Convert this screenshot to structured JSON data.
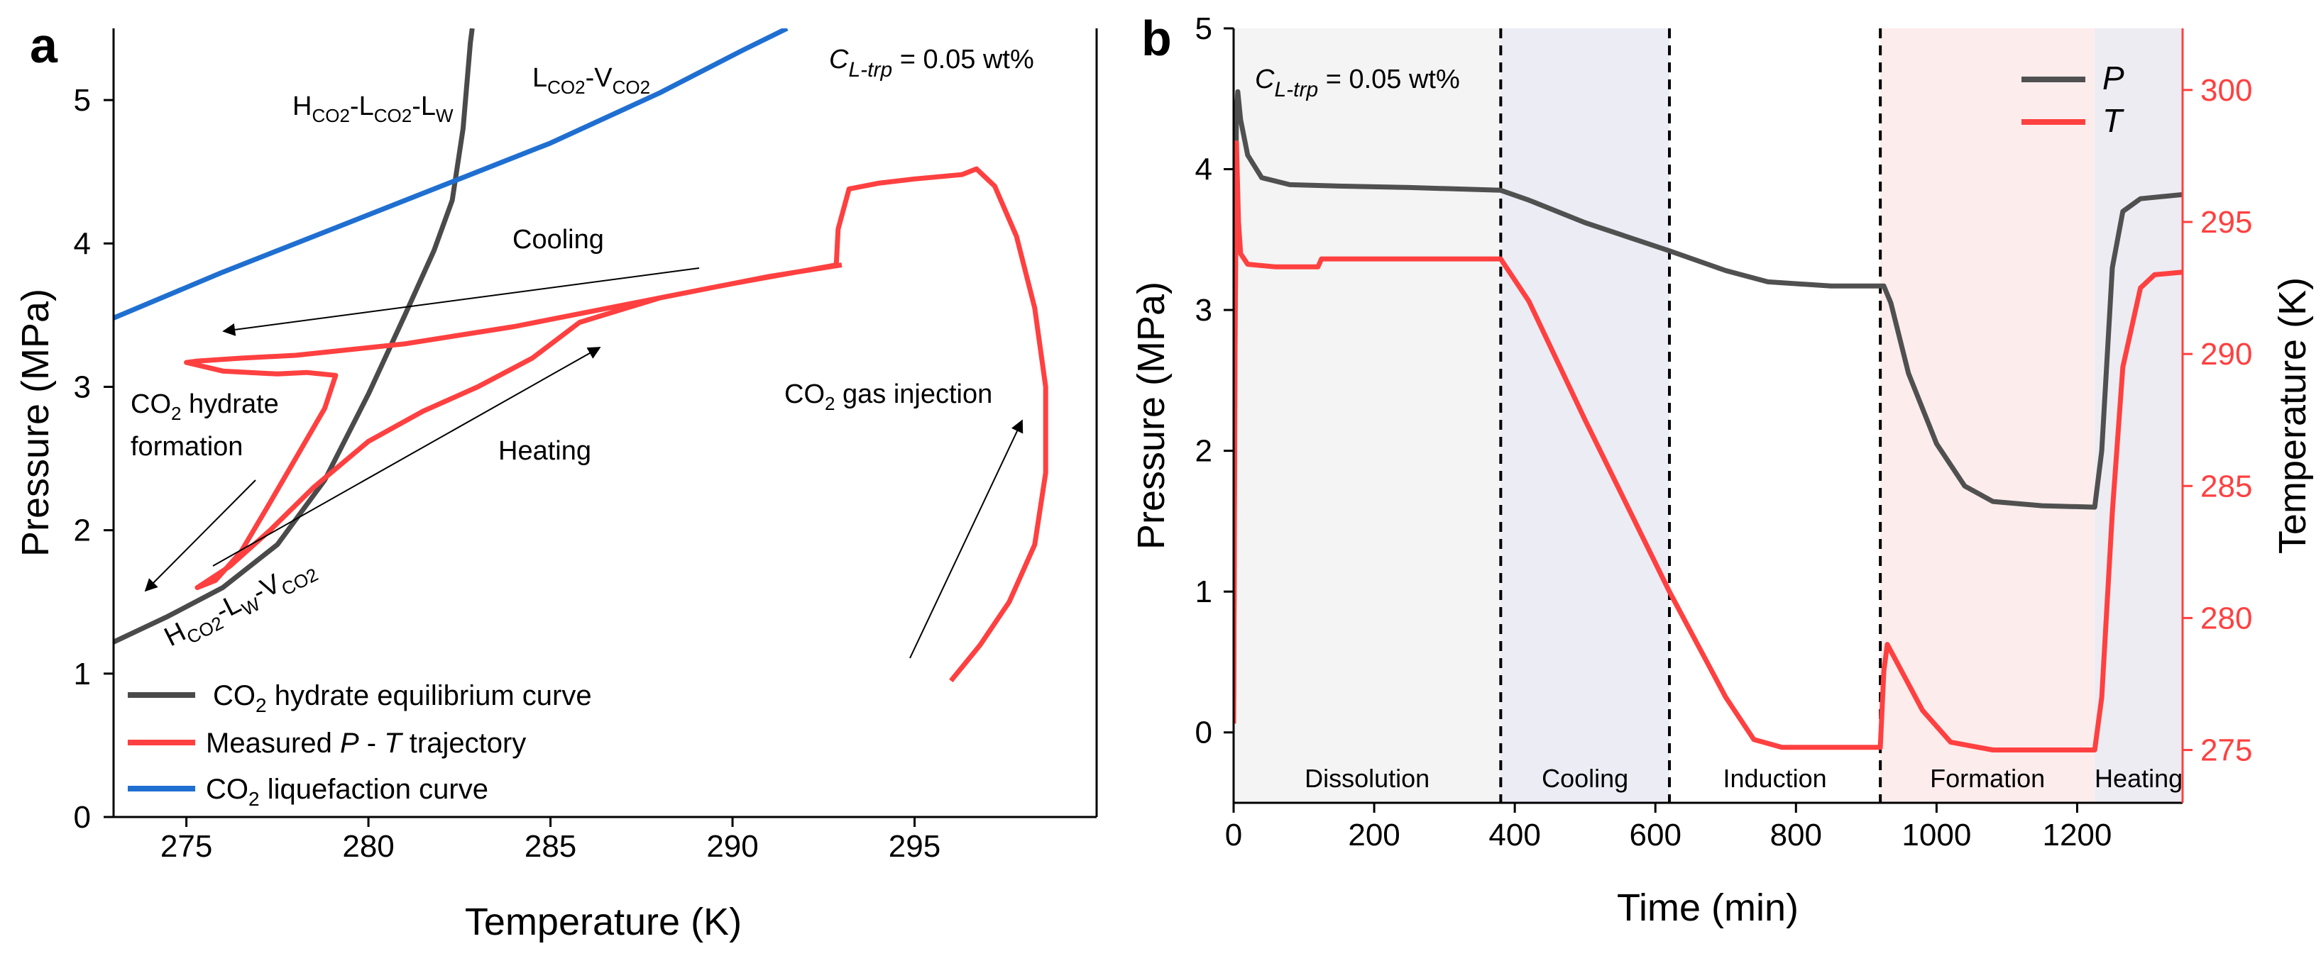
{
  "figure": {
    "panel_a": {
      "letter": "a",
      "conc_label": {
        "c": "C",
        "sub": "L-trp",
        "rest": " = 0.05 wt%"
      },
      "annotations": {
        "hlw_curve": {
          "parts": [
            "H",
            "CO2",
            "-L",
            "CO2",
            "-L",
            "W"
          ]
        },
        "lv_curve": {
          "parts": [
            "L",
            "CO2",
            "-V",
            "CO2"
          ]
        },
        "hlv_curve": {
          "parts": [
            "H",
            "CO2",
            "-L",
            "W",
            "-V",
            "CO2"
          ]
        },
        "cooling": "Cooling",
        "heating": "Heating",
        "formation_line1": {
          "pre": "CO",
          "sub": "2",
          "post": " hydrate"
        },
        "formation_line2": "formation",
        "injection": {
          "pre": "CO",
          "sub": "2",
          "post": " gas injection"
        }
      },
      "legend": [
        {
          "pre": "CO",
          "sub": "2",
          "post": " hydrate equilibrium curve",
          "color": "#4a4a4a"
        },
        {
          "text": "Measured ",
          "italic1": "P",
          "mid": " - ",
          "italic2": "T",
          "post": " trajectory",
          "color": "#ff4040"
        },
        {
          "pre": "CO",
          "sub": "2",
          "post": " liquefaction curve",
          "color": "#1f6fd1"
        }
      ]
    },
    "panel_b": {
      "letter": "b",
      "conc_label": {
        "c": "C",
        "sub": "L-trp",
        "rest": " = 0.05 wt%"
      },
      "legend": [
        {
          "label": "P",
          "color": "#505050"
        },
        {
          "label": "T",
          "color": "#ff4040"
        }
      ],
      "phases": [
        {
          "label": "Dissolution",
          "start": 0,
          "end": 380,
          "fill": "#f4f4f4"
        },
        {
          "label": "Cooling",
          "start": 380,
          "end": 620,
          "fill": "#ececf5"
        },
        {
          "label": "Induction",
          "start": 620,
          "end": 920,
          "fill": "#ffffff"
        },
        {
          "label": "Formation",
          "start": 920,
          "end": 1225,
          "fill": "#fdecec"
        },
        {
          "label": "Heating",
          "start": 1225,
          "end": 1350,
          "fill": "#ececf2"
        }
      ],
      "dividers": [
        380,
        620,
        920
      ]
    }
  },
  "chart_data": [
    {
      "type": "line",
      "title": "",
      "xlabel": "Temperature (K)",
      "ylabel": "Pressure (MPa)",
      "xlim": [
        273,
        300
      ],
      "ylim": [
        0,
        5.5
      ],
      "xticks": [
        275,
        280,
        285,
        290,
        295
      ],
      "yticks": [
        0,
        1,
        2,
        3,
        4,
        5
      ],
      "series": [
        {
          "name": "CO2 hydrate equilibrium curve",
          "color": "#4a4a4a",
          "points": [
            [
              273.0,
              1.22
            ],
            [
              274.5,
              1.4
            ],
            [
              276.0,
              1.6
            ],
            [
              277.5,
              1.9
            ],
            [
              278.8,
              2.35
            ],
            [
              280.0,
              2.95
            ],
            [
              281.0,
              3.5
            ],
            [
              281.8,
              3.95
            ],
            [
              282.3,
              4.3
            ],
            [
              282.6,
              4.8
            ],
            [
              282.8,
              5.4
            ],
            [
              282.85,
              5.5
            ]
          ]
        },
        {
          "name": "Measured P - T trajectory",
          "color": "#ff4040",
          "points": [
            [
              296.0,
              0.95
            ],
            [
              296.8,
              1.2
            ],
            [
              297.6,
              1.5
            ],
            [
              298.3,
              1.9
            ],
            [
              298.6,
              2.4
            ],
            [
              298.6,
              3.0
            ],
            [
              298.3,
              3.55
            ],
            [
              297.8,
              4.05
            ],
            [
              297.2,
              4.4
            ],
            [
              296.7,
              4.52
            ],
            [
              296.3,
              4.48
            ],
            [
              295.0,
              4.45
            ],
            [
              294.0,
              4.42
            ],
            [
              293.2,
              4.38
            ],
            [
              292.9,
              4.1
            ],
            [
              292.85,
              3.85
            ],
            [
              290.0,
              3.72
            ],
            [
              287.0,
              3.57
            ],
            [
              284.0,
              3.42
            ],
            [
              281.0,
              3.3
            ],
            [
              278.0,
              3.22
            ],
            [
              276.5,
              3.2
            ],
            [
              275.3,
              3.18
            ],
            [
              275.0,
              3.17
            ],
            [
              276.0,
              3.11
            ],
            [
              277.5,
              3.09
            ],
            [
              278.3,
              3.1
            ],
            [
              279.1,
              3.08
            ],
            [
              278.8,
              2.85
            ],
            [
              278.0,
              2.5
            ],
            [
              277.2,
              2.15
            ],
            [
              276.5,
              1.85
            ],
            [
              275.8,
              1.65
            ],
            [
              275.3,
              1.6
            ],
            [
              276.2,
              1.75
            ],
            [
              277.3,
              2.0
            ],
            [
              278.5,
              2.3
            ],
            [
              280.0,
              2.62
            ],
            [
              281.5,
              2.83
            ],
            [
              283.0,
              3.0
            ],
            [
              284.5,
              3.2
            ],
            [
              285.8,
              3.45
            ],
            [
              288.0,
              3.62
            ],
            [
              291.0,
              3.77
            ],
            [
              293.0,
              3.85
            ]
          ]
        },
        {
          "name": "CO2 liquefaction curve",
          "color": "#1f6fd1",
          "points": [
            [
              273.0,
              3.48
            ],
            [
              276.0,
              3.8
            ],
            [
              279.0,
              4.1
            ],
            [
              282.0,
              4.4
            ],
            [
              285.0,
              4.7
            ],
            [
              288.0,
              5.05
            ],
            [
              290.3,
              5.35
            ],
            [
              291.5,
              5.5
            ]
          ]
        }
      ]
    },
    {
      "type": "line",
      "title": "",
      "xlabel": "Time (min)",
      "ylabel": "Pressure (MPa)",
      "y2label": "Temperature (K)",
      "xlim": [
        0,
        1350
      ],
      "ylim": [
        -0.5,
        5
      ],
      "y2lim": [
        273,
        302.333
      ],
      "xticks": [
        0,
        200,
        400,
        600,
        800,
        1000,
        1200
      ],
      "yticks": [
        0,
        1,
        2,
        3,
        4,
        5
      ],
      "y2ticks": [
        275,
        280,
        285,
        290,
        295,
        300
      ],
      "series": [
        {
          "name": "P",
          "axis": "left",
          "color": "#505050",
          "points": [
            [
              0,
              0.1
            ],
            [
              2,
              3.0
            ],
            [
              4,
              4.4
            ],
            [
              6,
              4.55
            ],
            [
              10,
              4.35
            ],
            [
              20,
              4.1
            ],
            [
              40,
              3.94
            ],
            [
              80,
              3.89
            ],
            [
              150,
              3.88
            ],
            [
              250,
              3.87
            ],
            [
              380,
              3.85
            ],
            [
              420,
              3.78
            ],
            [
              500,
              3.62
            ],
            [
              620,
              3.42
            ],
            [
              700,
              3.28
            ],
            [
              760,
              3.2
            ],
            [
              850,
              3.17
            ],
            [
              925,
              3.17
            ],
            [
              935,
              3.05
            ],
            [
              960,
              2.55
            ],
            [
              1000,
              2.05
            ],
            [
              1040,
              1.75
            ],
            [
              1080,
              1.64
            ],
            [
              1150,
              1.61
            ],
            [
              1225,
              1.6
            ],
            [
              1235,
              2.0
            ],
            [
              1250,
              3.3
            ],
            [
              1265,
              3.7
            ],
            [
              1290,
              3.79
            ],
            [
              1350,
              3.82
            ]
          ]
        },
        {
          "name": "T",
          "axis": "right",
          "color": "#ff4040",
          "points": [
            [
              0,
              276
            ],
            [
              2,
              290
            ],
            [
              4,
              298
            ],
            [
              7,
              295
            ],
            [
              10,
              293.8
            ],
            [
              20,
              293.4
            ],
            [
              60,
              293.3
            ],
            [
              120,
              293.3
            ],
            [
              125,
              293.6
            ],
            [
              250,
              293.6
            ],
            [
              380,
              293.6
            ],
            [
              420,
              292.0
            ],
            [
              500,
              287.5
            ],
            [
              620,
              281.0
            ],
            [
              700,
              277.0
            ],
            [
              740,
              275.4
            ],
            [
              780,
              275.1
            ],
            [
              850,
              275.1
            ],
            [
              920,
              275.1
            ],
            [
              925,
              278.0
            ],
            [
              930,
              279.0
            ],
            [
              950,
              278.0
            ],
            [
              980,
              276.5
            ],
            [
              1020,
              275.3
            ],
            [
              1080,
              275.0
            ],
            [
              1225,
              275.0
            ],
            [
              1235,
              277.0
            ],
            [
              1250,
              284.0
            ],
            [
              1265,
              289.5
            ],
            [
              1290,
              292.5
            ],
            [
              1310,
              293.0
            ],
            [
              1350,
              293.1
            ]
          ]
        }
      ]
    }
  ]
}
